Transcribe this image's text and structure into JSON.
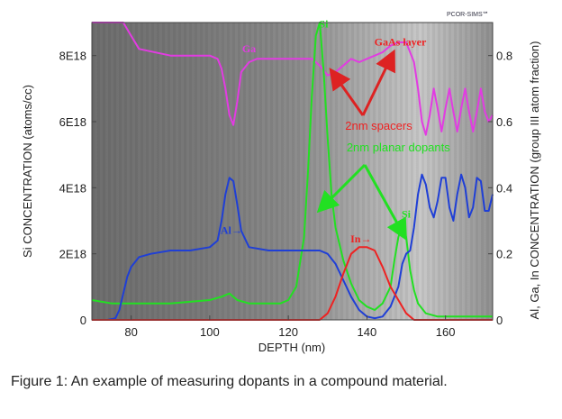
{
  "chart_data": {
    "type": "line",
    "brand": "PCOR-SIMS℠",
    "xlabel": "DEPTH (nm)",
    "ylabel_left": "Si CONCENTRATION (atoms/cc)",
    "ylabel_right": "Al, Ga, In CONCENTRATION (group III atom fraction)",
    "xlim": [
      70,
      172
    ],
    "ylim_left": [
      0,
      9e+18
    ],
    "ylim_right": [
      0,
      0.9
    ],
    "x_ticks": [
      {
        "value": 80,
        "label": "80"
      },
      {
        "value": 100,
        "label": "100"
      },
      {
        "value": 120,
        "label": "120"
      },
      {
        "value": 140,
        "label": "140"
      },
      {
        "value": 160,
        "label": "160"
      }
    ],
    "y_left_ticks": [
      {
        "value": 0,
        "label": "0"
      },
      {
        "value": 2e+18,
        "label": "2E18"
      },
      {
        "value": 4e+18,
        "label": "4E18"
      },
      {
        "value": 6e+18,
        "label": "6E18"
      },
      {
        "value": 8e+18,
        "label": "8E18"
      }
    ],
    "y_right_ticks": [
      {
        "value": 0,
        "label": "0"
      },
      {
        "value": 0.2,
        "label": "0.2"
      },
      {
        "value": 0.4,
        "label": "0.4"
      },
      {
        "value": 0.6,
        "label": "0.6"
      },
      {
        "value": 0.8,
        "label": "0.8"
      }
    ],
    "series": [
      {
        "name": "Ga",
        "axis": "right",
        "color": "#e23be2",
        "x": [
          70,
          78,
          80,
          82,
          90,
          100,
          102,
          103,
          104,
          105,
          106,
          107,
          108,
          110,
          112,
          120,
          126,
          128,
          130,
          132,
          134,
          136,
          138,
          140,
          142,
          144,
          146,
          148,
          150,
          152,
          153,
          154,
          155,
          156,
          157,
          158,
          159,
          160,
          161,
          162,
          163,
          164,
          165,
          166,
          167,
          168,
          169,
          170,
          171,
          172
        ],
        "y": [
          0.9,
          0.9,
          0.86,
          0.82,
          0.8,
          0.8,
          0.79,
          0.76,
          0.7,
          0.62,
          0.59,
          0.66,
          0.75,
          0.78,
          0.79,
          0.79,
          0.79,
          0.77,
          0.74,
          0.75,
          0.77,
          0.79,
          0.78,
          0.79,
          0.8,
          0.81,
          0.83,
          0.84,
          0.84,
          0.78,
          0.7,
          0.6,
          0.56,
          0.62,
          0.7,
          0.64,
          0.57,
          0.64,
          0.7,
          0.63,
          0.57,
          0.64,
          0.7,
          0.63,
          0.57,
          0.63,
          0.7,
          0.63,
          0.6,
          0.62
        ]
      },
      {
        "name": "Si",
        "axis": "left",
        "color": "#22e022",
        "x": [
          70,
          75,
          80,
          90,
          100,
          103,
          105,
          107,
          110,
          115,
          118,
          120,
          122,
          124,
          125,
          126,
          127,
          128,
          129,
          130,
          131,
          132,
          134,
          136,
          138,
          140,
          142,
          144,
          146,
          147,
          148,
          149,
          150,
          151,
          152,
          153,
          155,
          158,
          160,
          165,
          170,
          172
        ],
        "y": [
          6e+17,
          5e+17,
          5e+17,
          5e+17,
          6e+17,
          7e+17,
          8e+17,
          6e+17,
          5e+17,
          5e+17,
          5e+17,
          6e+17,
          1e+18,
          2.5e+18,
          4.5e+18,
          6.8e+18,
          8.6e+18,
          9e+18,
          7.5e+18,
          5.5e+18,
          3.8e+18,
          2.8e+18,
          1.8e+18,
          1.1e+18,
          6e+17,
          4e+17,
          3e+17,
          5e+17,
          1e+18,
          1.8e+18,
          2.5e+18,
          2.9e+18,
          2.5e+18,
          1.5e+18,
          9e+17,
          5e+17,
          2e+17,
          1e+17,
          1e+17,
          1e+17,
          1e+17,
          1e+17
        ]
      },
      {
        "name": "Al",
        "axis": "right",
        "color": "#1f3fd6",
        "x": [
          70,
          74,
          76,
          77,
          78,
          79,
          80,
          82,
          85,
          90,
          95,
          100,
          102,
          103,
          104,
          105,
          106,
          107,
          108,
          110,
          115,
          120,
          124,
          126,
          128,
          130,
          132,
          134,
          136,
          138,
          140,
          142,
          144,
          146,
          148,
          149,
          150,
          151,
          152,
          153,
          154,
          155,
          156,
          157,
          158,
          159,
          160,
          161,
          162,
          163,
          164,
          165,
          166,
          167,
          168,
          169,
          170,
          171,
          172
        ],
        "y": [
          0,
          0,
          0.005,
          0.03,
          0.08,
          0.13,
          0.16,
          0.19,
          0.2,
          0.21,
          0.21,
          0.22,
          0.24,
          0.3,
          0.38,
          0.43,
          0.42,
          0.35,
          0.27,
          0.22,
          0.21,
          0.21,
          0.21,
          0.21,
          0.21,
          0.2,
          0.17,
          0.12,
          0.07,
          0.03,
          0.01,
          0.005,
          0.01,
          0.04,
          0.1,
          0.17,
          0.2,
          0.21,
          0.28,
          0.38,
          0.44,
          0.41,
          0.34,
          0.31,
          0.36,
          0.43,
          0.43,
          0.34,
          0.3,
          0.38,
          0.44,
          0.4,
          0.31,
          0.34,
          0.43,
          0.42,
          0.33,
          0.33,
          0.38
        ]
      },
      {
        "name": "In",
        "axis": "right",
        "color": "#ee2222",
        "x": [
          70,
          128,
          130,
          132,
          134,
          136,
          138,
          140,
          142,
          144,
          146,
          148,
          150,
          152,
          172
        ],
        "y": [
          0,
          0,
          0.02,
          0.07,
          0.14,
          0.2,
          0.22,
          0.22,
          0.21,
          0.16,
          0.1,
          0.06,
          0.02,
          0,
          0
        ]
      }
    ],
    "annotations": [
      {
        "text": "Ga",
        "color": "#e23be2",
        "at": [
          110,
          0.81
        ]
      },
      {
        "text": "Si",
        "color": "#22e022",
        "at": [
          129,
          8.85e+18
        ]
      },
      {
        "text": "Si",
        "color": "#22e022",
        "at": [
          150,
          3.1e+18
        ]
      },
      {
        "text": "Al→",
        "color": "#1f3fd6",
        "at": [
          105.5,
          2.6e+18
        ]
      },
      {
        "text": "In→",
        "color": "#ee2222",
        "at": [
          138.5,
          2.35e+18
        ]
      },
      {
        "text": "GaAs layer",
        "color": "#ee2222",
        "at": [
          148.5,
          0.83
        ]
      },
      {
        "text": "2nm spacers",
        "color": "#ee2222",
        "at": [
          143,
          0.575
        ]
      },
      {
        "text": "2nm planar dopants",
        "color": "#22e022",
        "at": [
          148,
          5.1e+18
        ]
      }
    ]
  },
  "caption": "Figure 1: An example of measuring dopants in a compound material."
}
